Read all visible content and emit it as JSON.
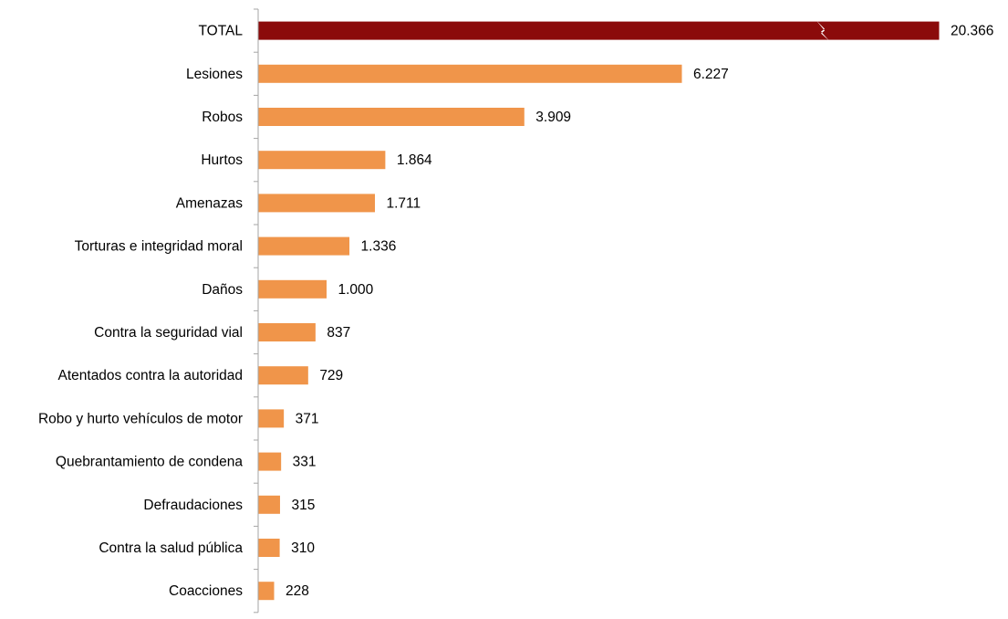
{
  "chart_data": {
    "type": "bar",
    "orientation": "horizontal",
    "categories": [
      "TOTAL",
      "Lesiones",
      "Robos",
      "Hurtos",
      "Amenazas",
      "Torturas e integridad moral",
      "Daños",
      "Contra la seguridad vial",
      "Atentados contra la autoridad",
      "Robo y hurto vehículos de motor",
      "Quebrantamiento de condena",
      "Defraudaciones",
      "Contra la salud pública",
      "Coacciones"
    ],
    "values": [
      20366,
      6227,
      3909,
      1864,
      1711,
      1336,
      1000,
      837,
      729,
      371,
      331,
      315,
      310,
      228
    ],
    "value_labels": [
      "20.366",
      "6.227",
      "3.909",
      "1.864",
      "1.711",
      "1.336",
      "1.000",
      "837",
      "729",
      "371",
      "331",
      "315",
      "310",
      "228"
    ],
    "title": "",
    "xlabel": "",
    "ylabel": "",
    "axis_break_on": "TOTAL",
    "grid": false,
    "legend": "none",
    "colors": {
      "total": "#8B0B0B",
      "bars": "#F0954A",
      "axis": "#A6A6A6"
    }
  }
}
